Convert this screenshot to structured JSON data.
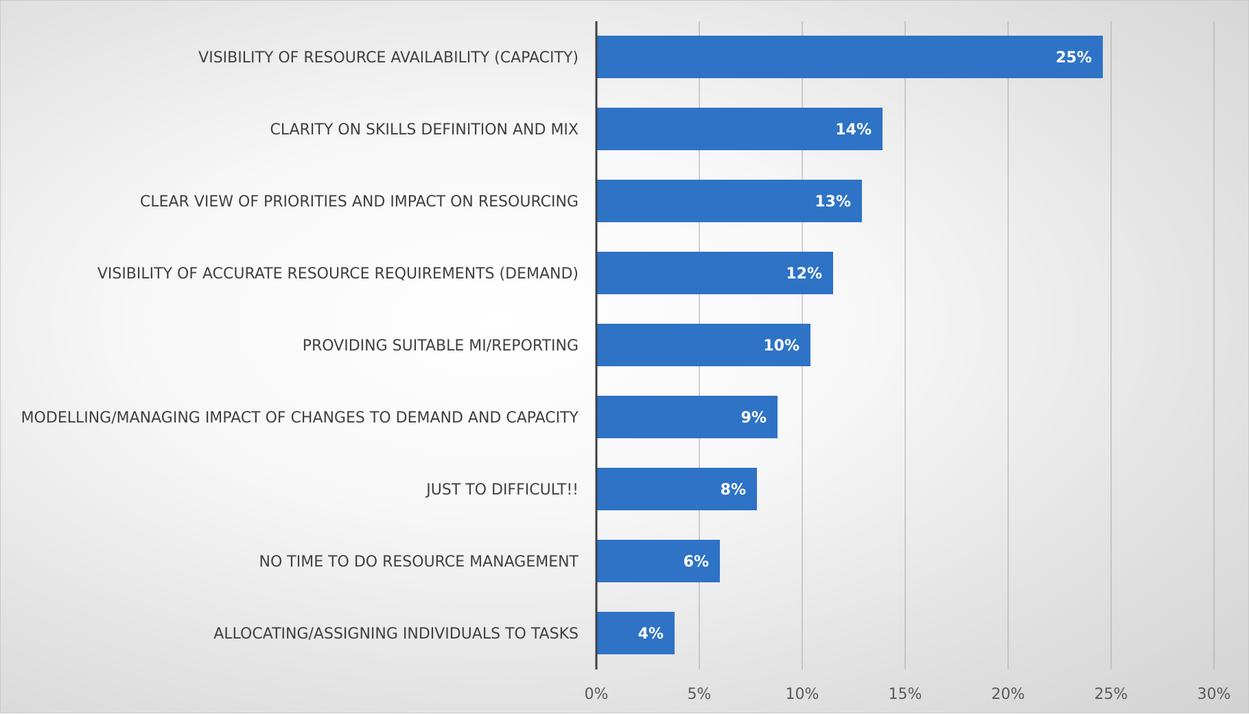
{
  "colors": {
    "bar": "#2e73c6",
    "axis": "#404040",
    "grid": "#a6a6a6"
  },
  "chart_data": {
    "type": "bar",
    "orientation": "horizontal",
    "categories": [
      "VISIBILITY OF RESOURCE AVAILABILITY (CAPACITY)",
      "CLARITY ON SKILLS DEFINITION AND MIX",
      "CLEAR VIEW OF PRIORITIES AND IMPACT ON RESOURCING",
      "VISIBILITY OF ACCURATE RESOURCE REQUIREMENTS (DEMAND)",
      "PROVIDING SUITABLE MI/REPORTING",
      "MODELLING/MANAGING IMPACT OF CHANGES TO DEMAND AND CAPACITY",
      "JUST TO DIFFICULT!!",
      "NO TIME TO DO RESOURCE MANAGEMENT",
      "ALLOCATING/ASSIGNING INDIVIDUALS TO TASKS"
    ],
    "values": [
      24.6,
      13.9,
      12.9,
      11.5,
      10.4,
      8.8,
      7.8,
      6.0,
      3.8
    ],
    "data_labels": [
      "25%",
      "14%",
      "13%",
      "12%",
      "10%",
      "9%",
      "8%",
      "6%",
      "4%"
    ],
    "xlim": [
      0,
      30
    ],
    "xticks": [
      0,
      5,
      10,
      15,
      20,
      25,
      30
    ],
    "xtick_labels": [
      "0%",
      "5%",
      "10%",
      "15%",
      "20%",
      "25%",
      "30%"
    ],
    "grid": "vertical",
    "title": "",
    "xlabel": "",
    "ylabel": ""
  }
}
